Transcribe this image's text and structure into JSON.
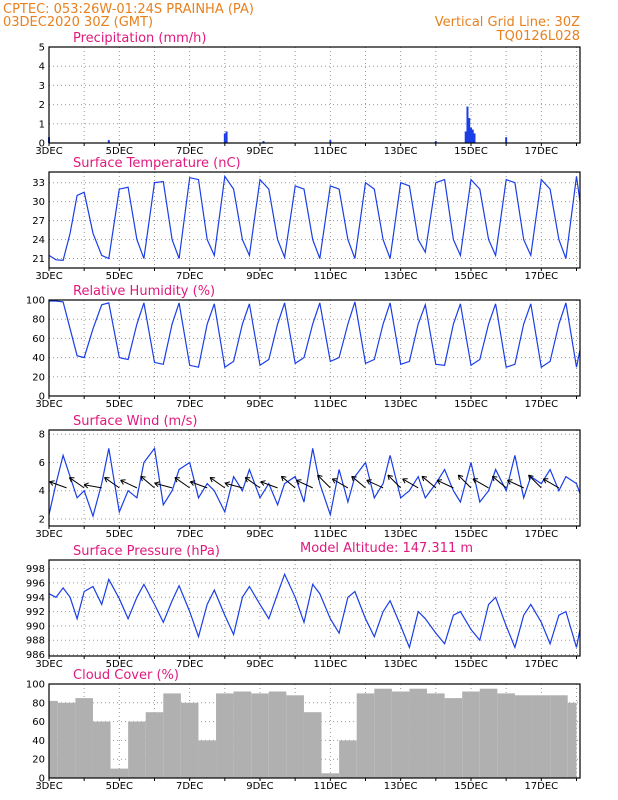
{
  "header": {
    "left_line1": "CPTEC:   053:26W-01:24S   PRAINHA (PA)",
    "left_line2": "03DEC2020 30Z (GMT)",
    "right_line1": "Vertical Grid Line: 30Z",
    "right_line2": "TQ0126L028",
    "model_altitude": "Model Altitude: 147.311 m"
  },
  "colors": {
    "header": "#e8801e",
    "title": "#e0197d",
    "series": "#1a3ee6",
    "cloud": "#b0b0b0",
    "wind_arrow": "#000000"
  },
  "chart_data": [
    {
      "type": "bar",
      "title": "Precipitation (mm/h)",
      "xrange": [
        3,
        18.1
      ],
      "ylim": [
        0,
        5
      ],
      "yticks": [
        0,
        1,
        2,
        3,
        4,
        5
      ],
      "xticks": [
        "3DEC",
        "5DEC",
        "7DEC",
        "9DEC",
        "11DEC",
        "13DEC",
        "15DEC",
        "17DEC"
      ],
      "x": [
        3.0,
        4.7,
        8.0,
        8.05,
        9.1,
        11.0,
        14.0,
        14.85,
        14.9,
        14.95,
        15.0,
        15.05,
        15.1,
        16.0
      ],
      "values": [
        0.3,
        0.15,
        0.5,
        0.6,
        0.1,
        0.15,
        0.1,
        0.6,
        1.9,
        1.3,
        0.8,
        0.7,
        0.5,
        0.3
      ]
    },
    {
      "type": "line",
      "title": "Surface Temperature (nC)",
      "xrange": [
        3,
        18.1
      ],
      "ylim": [
        19.5,
        34.7
      ],
      "yticks": [
        21,
        24,
        27,
        30,
        33
      ],
      "xticks": [
        "3DEC",
        "5DEC",
        "7DEC",
        "9DEC",
        "11DEC",
        "13DEC",
        "15DEC",
        "17DEC"
      ],
      "x": [
        3.0,
        3.2,
        3.4,
        3.6,
        3.8,
        4.0,
        4.25,
        4.5,
        4.7,
        5.0,
        5.25,
        5.5,
        5.7,
        6.0,
        6.25,
        6.5,
        6.7,
        7.0,
        7.25,
        7.5,
        7.7,
        8.0,
        8.25,
        8.5,
        8.7,
        9.0,
        9.25,
        9.5,
        9.7,
        10.0,
        10.25,
        10.5,
        10.7,
        11.0,
        11.25,
        11.5,
        11.7,
        12.0,
        12.25,
        12.5,
        12.7,
        13.0,
        13.25,
        13.5,
        13.7,
        14.0,
        14.25,
        14.5,
        14.7,
        15.0,
        15.25,
        15.5,
        15.7,
        16.0,
        16.25,
        16.5,
        16.7,
        17.0,
        17.25,
        17.5,
        17.7,
        18.0,
        18.1
      ],
      "values": [
        21.5,
        20.8,
        20.7,
        25.0,
        31.0,
        31.5,
        25.0,
        21.5,
        21.0,
        32.0,
        32.3,
        24.0,
        21.0,
        33.0,
        33.2,
        24.0,
        21.0,
        33.8,
        33.5,
        24.0,
        21.5,
        34.0,
        32.0,
        24.0,
        21.5,
        33.5,
        32.0,
        24.0,
        21.2,
        32.5,
        32.0,
        24.0,
        21.0,
        32.5,
        32.0,
        24.0,
        21.0,
        33.0,
        32.0,
        24.0,
        21.0,
        33.0,
        32.5,
        24.0,
        22.0,
        33.0,
        33.5,
        24.0,
        21.5,
        33.5,
        32.0,
        24.0,
        21.5,
        33.5,
        33.0,
        24.0,
        21.5,
        33.5,
        32.0,
        24.0,
        21.0,
        34.0,
        30.0
      ]
    },
    {
      "type": "line",
      "title": "Relative Humidity (%)",
      "xrange": [
        3,
        18.1
      ],
      "ylim": [
        0,
        100
      ],
      "yticks": [
        0,
        20,
        40,
        60,
        80,
        100
      ],
      "xticks": [
        "3DEC",
        "5DEC",
        "7DEC",
        "9DEC",
        "11DEC",
        "13DEC",
        "15DEC",
        "17DEC"
      ],
      "x": [
        3.0,
        3.2,
        3.4,
        3.6,
        3.8,
        4.0,
        4.25,
        4.5,
        4.7,
        5.0,
        5.25,
        5.5,
        5.7,
        6.0,
        6.25,
        6.5,
        6.7,
        7.0,
        7.25,
        7.5,
        7.7,
        8.0,
        8.25,
        8.5,
        8.7,
        9.0,
        9.25,
        9.5,
        9.7,
        10.0,
        10.25,
        10.5,
        10.7,
        11.0,
        11.25,
        11.5,
        11.7,
        12.0,
        12.25,
        12.5,
        12.7,
        13.0,
        13.25,
        13.5,
        13.7,
        14.0,
        14.25,
        14.5,
        14.7,
        15.0,
        15.25,
        15.5,
        15.7,
        16.0,
        16.25,
        16.5,
        16.7,
        17.0,
        17.25,
        17.5,
        17.7,
        18.0,
        18.1
      ],
      "values": [
        99,
        99,
        98,
        70,
        42,
        40,
        70,
        95,
        97,
        40,
        38,
        75,
        97,
        35,
        33,
        75,
        97,
        32,
        30,
        75,
        96,
        30,
        36,
        75,
        96,
        32,
        38,
        75,
        97,
        34,
        40,
        75,
        97,
        36,
        40,
        75,
        98,
        34,
        38,
        75,
        97,
        33,
        36,
        75,
        95,
        33,
        32,
        75,
        96,
        32,
        38,
        75,
        96,
        30,
        33,
        75,
        96,
        30,
        36,
        75,
        97,
        30,
        48
      ]
    },
    {
      "type": "line",
      "title": "Surface Wind (m/s)",
      "xrange": [
        3,
        18.1
      ],
      "ylim": [
        1.5,
        8.3
      ],
      "yticks": [
        2,
        4,
        6,
        8
      ],
      "xticks": [
        "3DEC",
        "5DEC",
        "7DEC",
        "9DEC",
        "11DEC",
        "13DEC",
        "15DEC",
        "17DEC"
      ],
      "x": [
        3.0,
        3.2,
        3.4,
        3.6,
        3.8,
        4.0,
        4.25,
        4.5,
        4.7,
        5.0,
        5.25,
        5.5,
        5.7,
        6.0,
        6.25,
        6.5,
        6.7,
        7.0,
        7.25,
        7.5,
        7.7,
        8.0,
        8.25,
        8.5,
        8.7,
        9.0,
        9.25,
        9.5,
        9.7,
        10.0,
        10.25,
        10.5,
        10.7,
        11.0,
        11.25,
        11.5,
        11.7,
        12.0,
        12.25,
        12.5,
        12.7,
        13.0,
        13.25,
        13.5,
        13.7,
        14.0,
        14.25,
        14.5,
        14.7,
        15.0,
        15.25,
        15.5,
        15.7,
        16.0,
        16.25,
        16.5,
        16.7,
        17.0,
        17.25,
        17.5,
        17.7,
        18.0,
        18.1
      ],
      "values": [
        2.3,
        4.5,
        6.5,
        5.0,
        3.5,
        4.0,
        2.2,
        4.5,
        7.0,
        2.5,
        4.0,
        3.5,
        6.0,
        7.0,
        3.0,
        4.0,
        5.5,
        6.0,
        3.5,
        4.5,
        4.0,
        2.5,
        5.0,
        4.0,
        5.5,
        3.5,
        4.5,
        3.0,
        4.5,
        5.0,
        3.2,
        7.0,
        4.5,
        2.3,
        5.5,
        3.2,
        5.0,
        6.0,
        3.5,
        4.5,
        6.5,
        3.5,
        4.0,
        5.0,
        3.5,
        4.5,
        5.5,
        4.0,
        3.2,
        6.0,
        3.2,
        4.0,
        5.5,
        4.0,
        6.5,
        3.5,
        5.0,
        4.5,
        5.5,
        4.0,
        5.0,
        4.5,
        3.8
      ],
      "vector_x": [
        3.5,
        4.0,
        4.5,
        5.0,
        5.5,
        6.0,
        6.5,
        7.0,
        7.5,
        8.0,
        8.5,
        9.0,
        9.5,
        10.0,
        10.5,
        11.0,
        11.5,
        12.0,
        12.5,
        13.0,
        13.5,
        14.0,
        14.5,
        15.0,
        15.5,
        16.0,
        16.5,
        17.0,
        17.5
      ],
      "vector_angle_deg": [
        200,
        215,
        190,
        215,
        205,
        220,
        195,
        215,
        200,
        215,
        195,
        215,
        200,
        220,
        205,
        225,
        210,
        220,
        205,
        225,
        210,
        220,
        205,
        225,
        210,
        220,
        205,
        225,
        210
      ]
    },
    {
      "type": "line",
      "title": "Surface Pressure (hPa)",
      "xrange": [
        3,
        18.1
      ],
      "ylim": [
        985.8,
        999.2
      ],
      "yticks": [
        986,
        988,
        990,
        992,
        994,
        996,
        998
      ],
      "xticks": [
        "3DEC",
        "5DEC",
        "7DEC",
        "9DEC",
        "11DEC",
        "13DEC",
        "15DEC",
        "17DEC"
      ],
      "x": [
        3.0,
        3.2,
        3.4,
        3.6,
        3.8,
        4.0,
        4.25,
        4.5,
        4.7,
        5.0,
        5.25,
        5.5,
        5.7,
        6.0,
        6.25,
        6.5,
        6.7,
        7.0,
        7.25,
        7.5,
        7.7,
        8.0,
        8.25,
        8.5,
        8.7,
        9.0,
        9.25,
        9.5,
        9.7,
        10.0,
        10.25,
        10.5,
        10.7,
        11.0,
        11.25,
        11.5,
        11.7,
        12.0,
        12.25,
        12.5,
        12.7,
        13.0,
        13.25,
        13.5,
        13.7,
        14.0,
        14.25,
        14.5,
        14.7,
        15.0,
        15.25,
        15.5,
        15.7,
        16.0,
        16.25,
        16.5,
        16.7,
        17.0,
        17.25,
        17.5,
        17.7,
        18.0,
        18.1
      ],
      "values": [
        994.5,
        994.0,
        995.3,
        994.0,
        991.0,
        994.8,
        995.5,
        993.0,
        996.5,
        993.8,
        991.0,
        994.0,
        995.8,
        993.0,
        990.5,
        993.5,
        995.6,
        992.0,
        988.5,
        993.0,
        995.0,
        991.5,
        988.8,
        994.0,
        995.5,
        993.0,
        991.0,
        994.5,
        997.2,
        994.0,
        990.5,
        995.8,
        994.5,
        991.0,
        989.0,
        994.0,
        994.8,
        991.0,
        988.5,
        992.0,
        993.5,
        990.0,
        987.0,
        992.0,
        991.0,
        989.0,
        987.5,
        991.5,
        992.0,
        989.5,
        988.0,
        993.0,
        994.0,
        990.0,
        987.0,
        991.5,
        993.0,
        990.5,
        987.5,
        991.5,
        992.0,
        987.0,
        989.5
      ]
    },
    {
      "type": "bar",
      "title": "Cloud Cover (%)",
      "xrange": [
        3,
        18.1
      ],
      "ylim": [
        0,
        100
      ],
      "yticks": [
        0,
        20,
        40,
        60,
        80,
        100
      ],
      "xticks": [
        "3DEC",
        "5DEC",
        "7DEC",
        "9DEC",
        "11DEC",
        "13DEC",
        "15DEC",
        "17DEC"
      ],
      "x": [
        3.0,
        3.5,
        4.0,
        4.5,
        5.0,
        5.5,
        6.0,
        6.5,
        7.0,
        7.5,
        8.0,
        8.5,
        9.0,
        9.5,
        10.0,
        10.5,
        11.0,
        11.5,
        12.0,
        12.5,
        13.0,
        13.5,
        14.0,
        14.5,
        15.0,
        15.5,
        16.0,
        16.5,
        17.0,
        17.5,
        18.0
      ],
      "values": [
        82,
        80,
        85,
        60,
        10,
        60,
        70,
        90,
        80,
        40,
        90,
        92,
        90,
        92,
        88,
        70,
        5,
        40,
        90,
        95,
        92,
        95,
        90,
        85,
        92,
        95,
        90,
        88,
        88,
        88,
        80
      ]
    }
  ]
}
